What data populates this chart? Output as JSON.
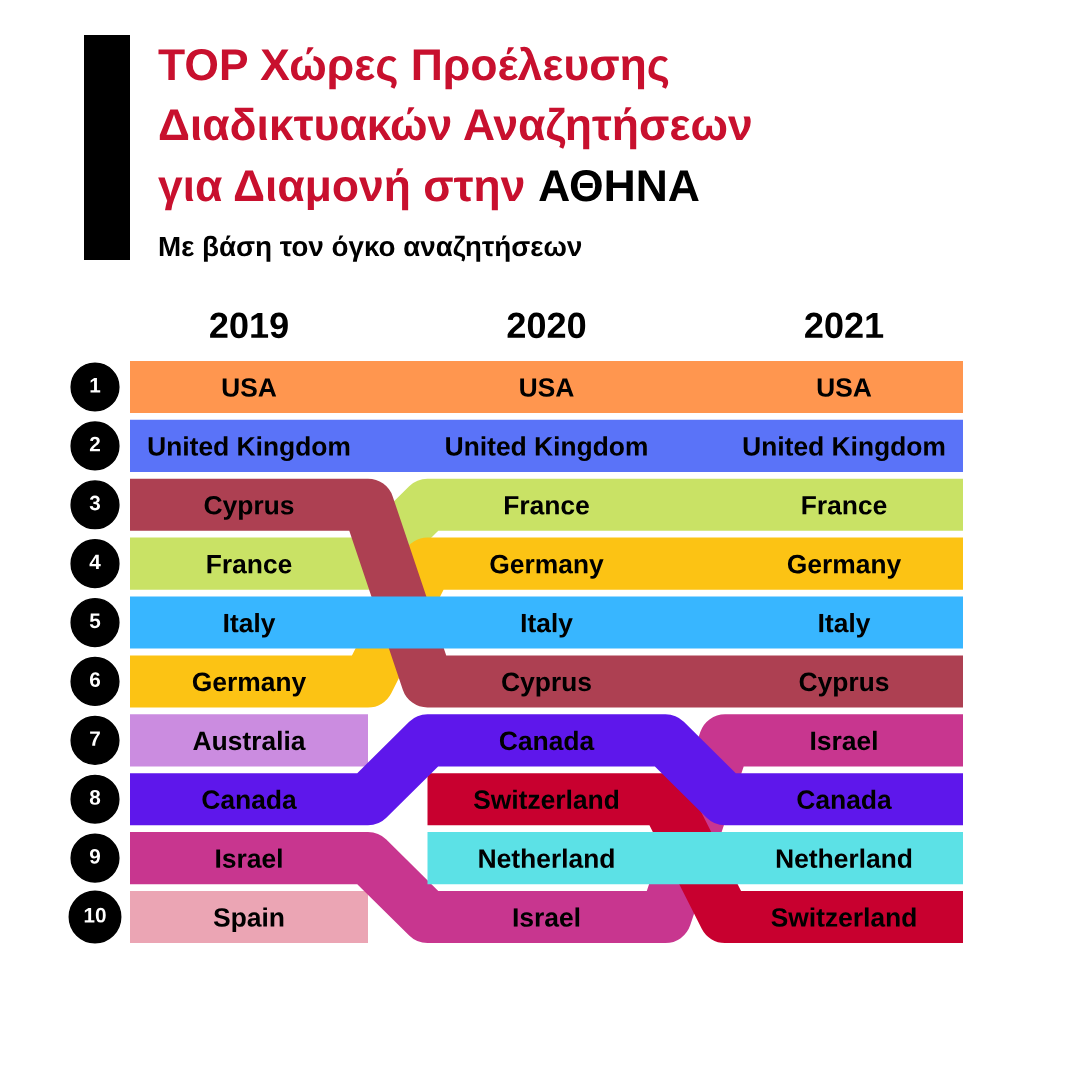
{
  "chart_data": {
    "type": "line",
    "title": "TOP Χώρες Προέλευσης\nΔιαδικτυακών Αναζητήσεων\nγια Διαμονή στην ΑΘΗΝΑ",
    "subtitle": "Με βάση τον όγκο αναζητήσεων",
    "categories": [
      null,
      null,
      "2019",
      null,
      null,
      null,
      null,
      "2020",
      null,
      null,
      null,
      null,
      "2021",
      null,
      null
    ],
    "ylim": [
      10,
      1
    ],
    "yticks": [
      1,
      2,
      3,
      4,
      5,
      6,
      7,
      8,
      9,
      10
    ],
    "series": [
      {
        "name": "USA",
        "color": "#ff964f",
        "values": [
          1,
          1,
          1,
          1,
          1,
          1,
          1,
          1,
          1,
          1,
          1,
          1,
          1,
          1,
          1
        ]
      },
      {
        "name": "United Kingdom",
        "color": "#5a73f8",
        "values": [
          2,
          2,
          2,
          2,
          2,
          2,
          2,
          2,
          2,
          2,
          2,
          2,
          2,
          2,
          2
        ]
      },
      {
        "name": "France",
        "color": "#c9e265",
        "values": [
          4,
          4,
          4,
          4,
          4,
          3,
          3,
          3,
          3,
          3,
          3,
          3,
          3,
          3,
          3
        ]
      },
      {
        "name": "Germany",
        "color": "#fcc314",
        "values": [
          6,
          6,
          6,
          6,
          6,
          4,
          4,
          4,
          4,
          4,
          4,
          4,
          4,
          4,
          4
        ]
      },
      {
        "name": "Cyprus",
        "color": "#ad4052",
        "values": [
          3,
          3,
          3,
          3,
          3,
          6,
          6,
          6,
          6,
          6,
          6,
          6,
          6,
          6,
          6
        ]
      },
      {
        "name": "Italy",
        "color": "#38b6ff",
        "values": [
          5,
          5,
          5,
          5,
          5,
          5,
          5,
          5,
          5,
          5,
          5,
          5,
          5,
          5,
          5
        ]
      },
      {
        "name": "Australia",
        "color": "#cb8ce0",
        "values": [
          7,
          7,
          7,
          7,
          7,
          null,
          null,
          null,
          null,
          null,
          null,
          null,
          null,
          null,
          null
        ]
      },
      {
        "name": "Spain",
        "color": "#eba5b4",
        "values": [
          10,
          10,
          10,
          10,
          10,
          null,
          null,
          null,
          null,
          null,
          null,
          null,
          null,
          null,
          null
        ]
      },
      {
        "name": "Israel",
        "color": "#c8368f",
        "values": [
          9,
          9,
          9,
          9,
          9,
          10,
          10,
          10,
          10,
          10,
          7,
          7,
          7,
          7,
          7
        ]
      },
      {
        "name": "Switzerland",
        "color": "#c8002f",
        "values": [
          null,
          null,
          null,
          null,
          null,
          8,
          8,
          8,
          8,
          8,
          10,
          10,
          10,
          10,
          10
        ]
      },
      {
        "name": "Canada",
        "color": "#5e17eb",
        "values": [
          8,
          8,
          8,
          8,
          8,
          7,
          7,
          7,
          7,
          7,
          8,
          8,
          8,
          8,
          8
        ]
      },
      {
        "name": "Netherland",
        "color": "#5ce1e6",
        "values": [
          null,
          null,
          null,
          null,
          null,
          9,
          9,
          9,
          9,
          9,
          9,
          9,
          9,
          9,
          9
        ]
      }
    ]
  }
}
